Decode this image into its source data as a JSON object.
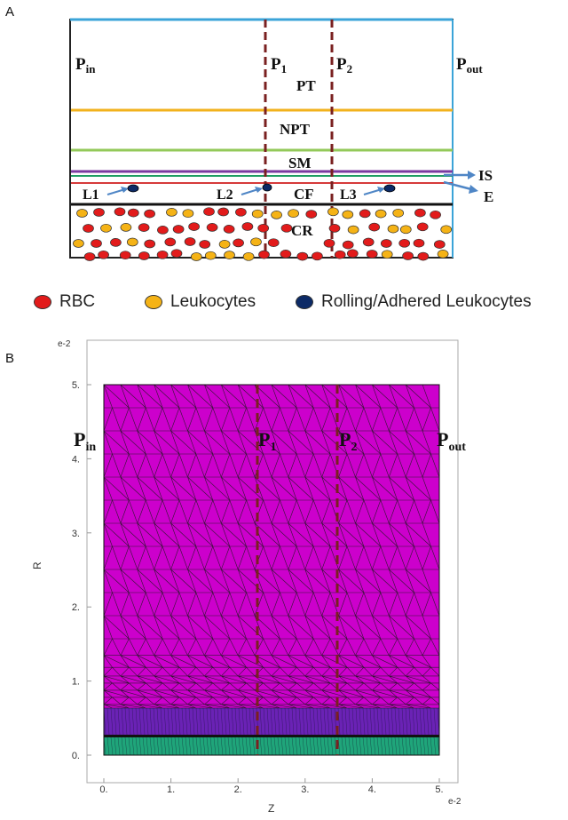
{
  "panel_a": {
    "label": "A",
    "pressures": {
      "pin": {
        "main": "P",
        "sub": "in"
      },
      "p1": {
        "main": "P",
        "sub": "1"
      },
      "p2": {
        "main": "P",
        "sub": "2"
      },
      "pout": {
        "main": "P",
        "sub": "out"
      }
    },
    "layers": {
      "pt": "PT",
      "npt": "NPT",
      "sm": "SM",
      "cf": "CF",
      "cr": "CR"
    },
    "leukocyte_labels": {
      "l1": "L1",
      "l2": "L2",
      "l3": "L3"
    },
    "side_labels": {
      "is": "IS",
      "e": "E"
    },
    "colors": {
      "pt_top": "#3ba4d8",
      "npt_line": "#f2b21c",
      "sm_line": "#93c95a",
      "is_line": "#7a3aa0",
      "is_green": "#1f9e63",
      "e_line": "#d63a3a",
      "cf_line": "#111111",
      "probe": "#7a2020",
      "arrow": "#4f86c6",
      "rbc": "#e21b1b",
      "leukocyte": "#f5b316",
      "adhered": "#0c2a66"
    }
  },
  "legend": {
    "rbc": "RBC",
    "leukocytes": "Leukocytes",
    "rolling": "Rolling/Adhered Leukocytes"
  },
  "panel_b": {
    "label": "B",
    "y_exponent": "e-2",
    "x_exponent": "e-2",
    "y_axis_label": "R",
    "x_axis_label": "Z",
    "y_ticks": [
      "0.",
      "1.",
      "2.",
      "3.",
      "4.",
      "5."
    ],
    "x_ticks": [
      "0.",
      "1.",
      "2.",
      "3.",
      "4.",
      "5."
    ],
    "pressures": {
      "pin": {
        "main": "P",
        "sub": "in"
      },
      "p1": {
        "main": "P",
        "sub": "1"
      },
      "p2": {
        "main": "P",
        "sub": "2"
      },
      "pout": {
        "main": "P",
        "sub": "out"
      }
    },
    "colors": {
      "mesh_fill": "#cc00cc",
      "dense_band": "#6a22b5",
      "bottom_band": "#1fa57a",
      "mesh_lines": "#1a1a1a",
      "probe": "#7a2020"
    }
  }
}
